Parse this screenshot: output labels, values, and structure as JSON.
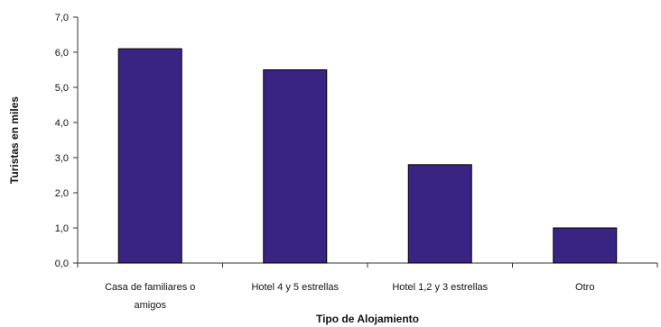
{
  "chart_data": {
    "type": "bar",
    "categories": [
      [
        "Casa de familiares o",
        "amigos"
      ],
      [
        "Hotel 4 y 5 estrellas"
      ],
      [
        "Hotel 1,2 y 3 estrellas"
      ],
      [
        "Otro"
      ]
    ],
    "values": [
      6.1,
      5.5,
      2.8,
      1.0
    ],
    "xlabel": "Tipo de Alojamiento",
    "ylabel": "Turistas en miles",
    "ylim": [
      0,
      7
    ],
    "yticks": [
      "0,0",
      "1,0",
      "2,0",
      "3,0",
      "4,0",
      "5,0",
      "6,0",
      "7,0"
    ],
    "grid": false,
    "legend": "none",
    "colors": {
      "bar_fill": "#3a2483",
      "bar_stroke": "#000000",
      "axis": "#333333"
    }
  }
}
